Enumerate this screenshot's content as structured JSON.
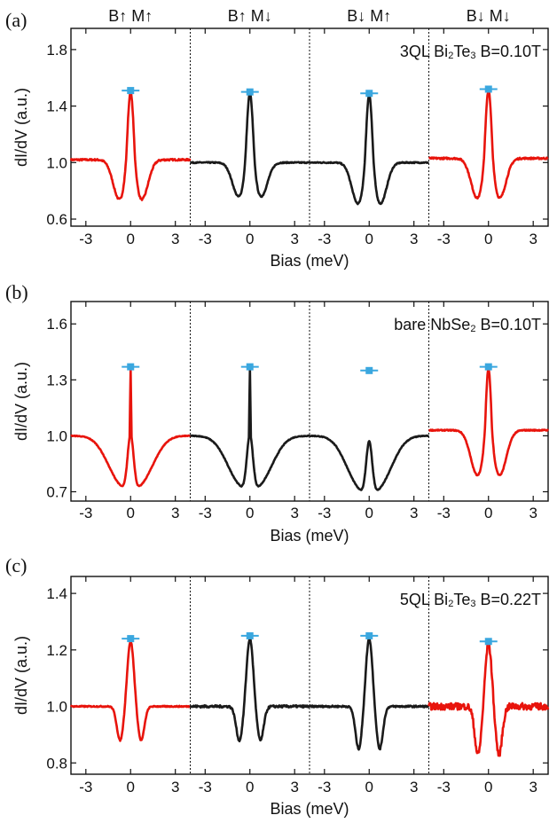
{
  "figure": {
    "column_headers": [
      "B↑ M↑",
      "B↑ M↓",
      "B↓ M↑",
      "B↓ M↓"
    ],
    "colors": {
      "parallel": "#e8140c",
      "antiparallel": "#1a1a1a",
      "marker": "#3aa7df",
      "axis": "#111111"
    }
  },
  "chart_data": [
    {
      "type": "line",
      "panel_label": "(a)",
      "annotation": "3QL Bi2Te3  B=0.10T",
      "annotation_parts": [
        "3QL Bi",
        "2",
        "Te",
        "3",
        "  B=0.10T"
      ],
      "xlabel": "Bias (meV)",
      "ylabel": "dI/dV (a.u.)",
      "ylim": [
        0.55,
        1.95
      ],
      "yticks": [
        0.6,
        1.0,
        1.4,
        1.8
      ],
      "ytick_labels": [
        "0.6",
        "1.0",
        "1.4",
        "1.8"
      ],
      "xlim_per_segment": [
        -4,
        4
      ],
      "xticks": [
        -3,
        0,
        3
      ],
      "xtick_labels": [
        "-3",
        "0",
        "3"
      ],
      "segments": [
        {
          "name": "B↑ M↑",
          "color": "#e8140c",
          "baseline": 1.02,
          "peak": 1.5,
          "dip": 0.74,
          "peak_marker": 1.51,
          "noise": 0.006,
          "sigma_peak": 0.22,
          "sigma_dip": 0.42,
          "dip_pos": 0.75
        },
        {
          "name": "B↑ M↓",
          "color": "#1a1a1a",
          "baseline": 1.0,
          "peak": 1.49,
          "dip": 0.76,
          "peak_marker": 1.5,
          "noise": 0.004,
          "sigma_peak": 0.22,
          "sigma_dip": 0.42,
          "dip_pos": 0.75
        },
        {
          "name": "B↓ M↑",
          "color": "#1a1a1a",
          "baseline": 1.0,
          "peak": 1.48,
          "dip": 0.71,
          "peak_marker": 1.49,
          "noise": 0.004,
          "sigma_peak": 0.22,
          "sigma_dip": 0.42,
          "dip_pos": 0.75
        },
        {
          "name": "B↓ M↓",
          "color": "#e8140c",
          "baseline": 1.03,
          "peak": 1.51,
          "dip": 0.75,
          "peak_marker": 1.52,
          "noise": 0.006,
          "sigma_peak": 0.22,
          "sigma_dip": 0.42,
          "dip_pos": 0.75
        }
      ]
    },
    {
      "type": "line",
      "panel_label": "(b)",
      "annotation": "bare NbSe2  B=0.10T",
      "annotation_parts": [
        "bare NbSe",
        "2",
        "",
        "",
        "  B=0.10T"
      ],
      "xlabel": "Bias (meV)",
      "ylabel": "dI/dV (a.u.)",
      "ylim": [
        0.65,
        1.72
      ],
      "yticks": [
        0.7,
        1.0,
        1.3,
        1.6
      ],
      "ytick_labels": [
        "0.7",
        "1.0",
        "1.3",
        "1.6"
      ],
      "xlim_per_segment": [
        -4,
        4
      ],
      "xticks": [
        -3,
        0,
        3
      ],
      "xtick_labels": [
        "-3",
        "0",
        "3"
      ],
      "segments": [
        {
          "name": "B↑ M↑",
          "color": "#e8140c",
          "baseline": 1.0,
          "peak": 1.36,
          "dip": 0.73,
          "peak_marker": 1.37,
          "noise": 0.002,
          "sigma_peak": 0.2,
          "sigma_dip": 0.55,
          "dip_pos": 0.75,
          "broad": true
        },
        {
          "name": "B↑ M↓",
          "color": "#1a1a1a",
          "baseline": 1.0,
          "peak": 1.36,
          "dip": 0.73,
          "peak_marker": 1.37,
          "noise": 0.002,
          "sigma_peak": 0.2,
          "sigma_dip": 0.55,
          "dip_pos": 0.75,
          "broad": true
        },
        {
          "name": "B↓ M↑",
          "color": "#1a1a1a",
          "baseline": 1.0,
          "peak": 1.34,
          "dip": 0.71,
          "peak_marker": 1.35,
          "noise": 0.002,
          "sigma_peak": 0.2,
          "sigma_dip": 0.55,
          "dip_pos": 0.75,
          "broad": true
        },
        {
          "name": "B↓ M↓",
          "color": "#e8140c",
          "baseline": 1.03,
          "peak": 1.36,
          "dip": 0.79,
          "peak_marker": 1.37,
          "noise": 0.003,
          "sigma_peak": 0.2,
          "sigma_dip": 0.45,
          "dip_pos": 0.75
        }
      ]
    },
    {
      "type": "line",
      "panel_label": "(c)",
      "annotation": "5QL Bi2Te3  B=0.22T",
      "annotation_parts": [
        "5QL Bi",
        "2",
        "Te",
        "3",
        "  B=0.22T"
      ],
      "xlabel": "Bias (meV)",
      "ylabel": "dI/dV (a.u.)",
      "ylim": [
        0.76,
        1.46
      ],
      "yticks": [
        0.8,
        1.0,
        1.2,
        1.4
      ],
      "ytick_labels": [
        "0.8",
        "1.0",
        "1.2",
        "1.4"
      ],
      "xlim_per_segment": [
        -4,
        4
      ],
      "xticks": [
        -3,
        0,
        3
      ],
      "xtick_labels": [
        "-3",
        "0",
        "3"
      ],
      "segments": [
        {
          "name": "B↑ M↑",
          "color": "#e8140c",
          "baseline": 1.0,
          "peak": 1.23,
          "dip": 0.88,
          "peak_marker": 1.24,
          "noise": 0.002,
          "sigma_peak": 0.22,
          "sigma_dip": 0.22,
          "dip_pos": 0.7
        },
        {
          "name": "B↑ M↓",
          "color": "#1a1a1a",
          "baseline": 1.0,
          "peak": 1.24,
          "dip": 0.88,
          "peak_marker": 1.25,
          "noise": 0.004,
          "sigma_peak": 0.22,
          "sigma_dip": 0.22,
          "dip_pos": 0.7
        },
        {
          "name": "B↓ M↑",
          "color": "#1a1a1a",
          "baseline": 1.0,
          "peak": 1.24,
          "dip": 0.85,
          "peak_marker": 1.25,
          "noise": 0.003,
          "sigma_peak": 0.22,
          "sigma_dip": 0.22,
          "dip_pos": 0.7
        },
        {
          "name": "B↓ M↓",
          "color": "#e8140c",
          "baseline": 1.0,
          "peak": 1.22,
          "dip": 0.83,
          "peak_marker": 1.23,
          "noise": 0.012,
          "sigma_peak": 0.22,
          "sigma_dip": 0.22,
          "dip_pos": 0.7
        }
      ]
    }
  ]
}
